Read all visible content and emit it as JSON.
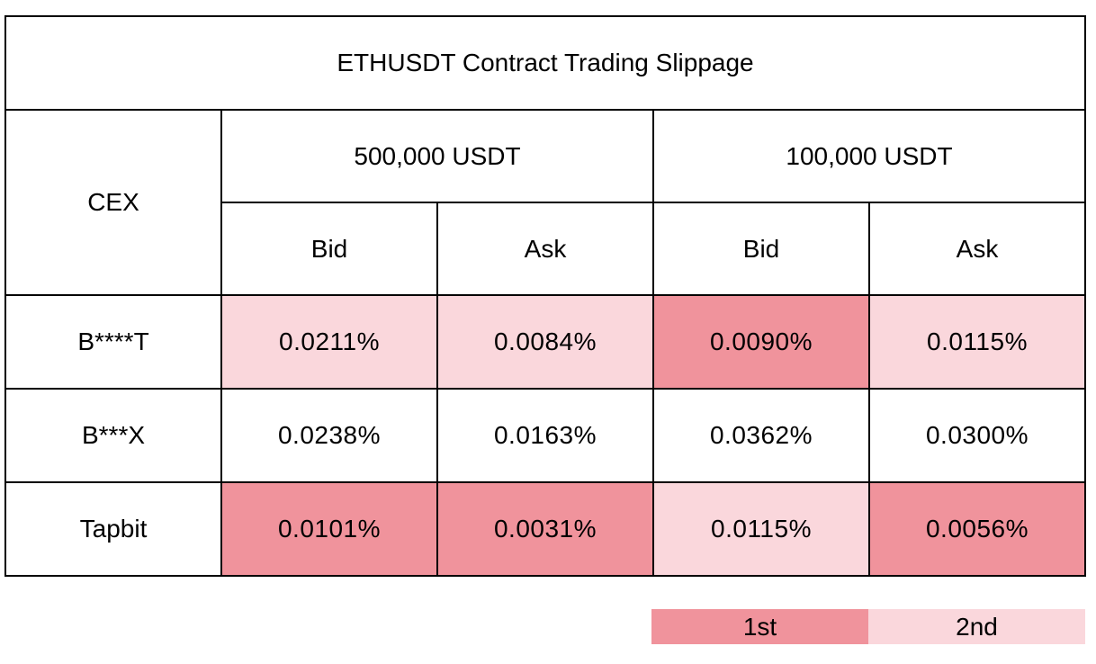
{
  "title": "ETHUSDT Contract Trading Slippage",
  "colors": {
    "first": "#f0939c",
    "second": "#fad7dc",
    "none": "#ffffff"
  },
  "chart_data": {
    "type": "table",
    "title": "ETHUSDT Contract Trading Slippage",
    "row_header": "CEX",
    "groups": [
      {
        "label": "500,000 USDT",
        "columns": [
          "Bid",
          "Ask"
        ]
      },
      {
        "label": "100,000 USDT",
        "columns": [
          "Bid",
          "Ask"
        ]
      }
    ],
    "rows": [
      {
        "cex": "B****T",
        "cells": [
          {
            "text": "0.0211%",
            "value": 0.0211,
            "rank": "2nd"
          },
          {
            "text": "0.0084%",
            "value": 0.0084,
            "rank": "2nd"
          },
          {
            "text": "0.0090%",
            "value": 0.009,
            "rank": "1st"
          },
          {
            "text": "0.0115%",
            "value": 0.0115,
            "rank": "2nd"
          }
        ]
      },
      {
        "cex": "B***X",
        "cells": [
          {
            "text": "0.0238%",
            "value": 0.0238,
            "rank": ""
          },
          {
            "text": "0.0163%",
            "value": 0.0163,
            "rank": ""
          },
          {
            "text": "0.0362%",
            "value": 0.0362,
            "rank": ""
          },
          {
            "text": "0.0300%",
            "value": 0.03,
            "rank": ""
          }
        ]
      },
      {
        "cex": "Tapbit",
        "cells": [
          {
            "text": "0.0101%",
            "value": 0.0101,
            "rank": "1st"
          },
          {
            "text": "0.0031%",
            "value": 0.0031,
            "rank": "1st"
          },
          {
            "text": "0.0115%",
            "value": 0.0115,
            "rank": "2nd"
          },
          {
            "text": "0.0056%",
            "value": 0.0056,
            "rank": "1st"
          }
        ]
      }
    ],
    "legend": [
      {
        "label": "1st",
        "color": "#f0939c"
      },
      {
        "label": "2nd",
        "color": "#fad7dc"
      }
    ]
  }
}
